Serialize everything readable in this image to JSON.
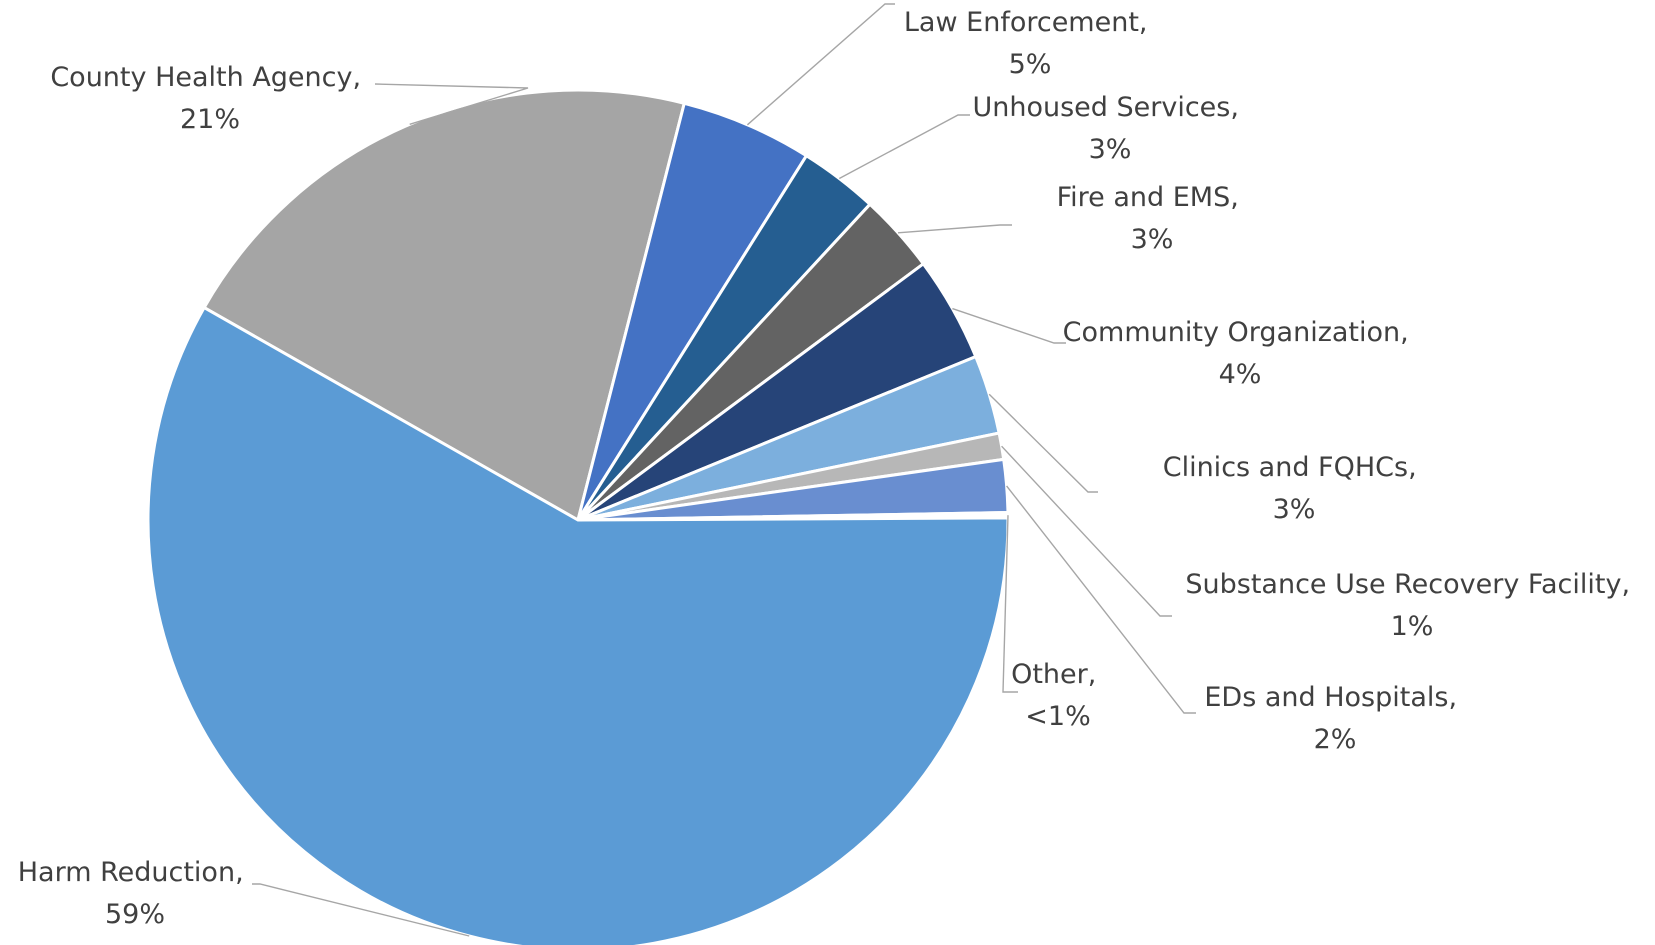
{
  "chart_data": {
    "type": "pie",
    "start_angle_deg": -150.4,
    "direction": "clockwise",
    "slices": [
      {
        "label": "County Health Agency",
        "value": 21,
        "display": "21%",
        "color": "#a5a5a5"
      },
      {
        "label": "Law Enforcement",
        "value": 5,
        "display": "5%",
        "color": "#4472c4"
      },
      {
        "label": "Unhoused Services",
        "value": 3,
        "display": "3%",
        "color": "#255e91"
      },
      {
        "label": "Fire and EMS",
        "value": 3,
        "display": "3%",
        "color": "#636363"
      },
      {
        "label": "Community Organization",
        "value": 4,
        "display": "4%",
        "color": "#264478"
      },
      {
        "label": "Clinics and FQHCs",
        "value": 3,
        "display": "3%",
        "color": "#7cafdd"
      },
      {
        "label": "Substance Use Recovery Facility",
        "value": 1,
        "display": "1%",
        "color": "#b7b7b7"
      },
      {
        "label": "EDs and Hospitals",
        "value": 2,
        "display": "2%",
        "color": "#698ed0"
      },
      {
        "label": "Other",
        "value": 0.2,
        "display": "<1%",
        "color": "#ffffff"
      },
      {
        "label": "Harm Reduction",
        "value": 59,
        "display": "59%",
        "color": "#5b9bd5"
      }
    ]
  }
}
